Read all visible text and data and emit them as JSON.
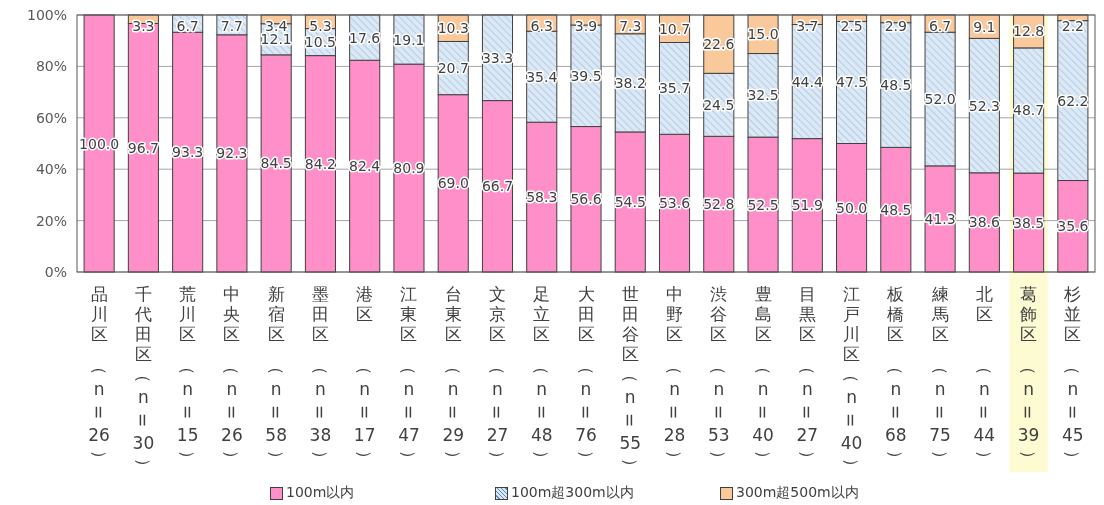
{
  "chart_data": {
    "type": "bar",
    "stacked": true,
    "grid": "y",
    "legend": "bottom",
    "categories": [
      "品川区（n=26）",
      "千代田区（n=30）",
      "荒川区（n=15）",
      "中央区（n=26）",
      "新宿区（n=58）",
      "墨田区（n=38）",
      "港区（n=17）",
      "江東区（n=47）",
      "台東区（n=29）",
      "文京区（n=27）",
      "足立区（n=48）",
      "大田区（n=76）",
      "世田谷区（n=55）",
      "中野区（n=28）",
      "渋谷区（n=53）",
      "豊島区（n=40）",
      "目黒区（n=27）",
      "江戸川区（n=40）",
      "板橋区（n=68）",
      "練馬区（n=75）",
      "北区（n=44）",
      "葛飾区（n=39）",
      "杉並区（n=45）"
    ],
    "ylim": [
      0,
      100
    ],
    "yticks": [
      {
        "value": 0,
        "label": "0%"
      },
      {
        "value": 20,
        "label": "20%"
      },
      {
        "value": 40,
        "label": "40%"
      },
      {
        "value": 60,
        "label": "60%"
      },
      {
        "value": 80,
        "label": "80%"
      },
      {
        "value": 100,
        "label": "100%"
      }
    ],
    "bands": [
      {
        "axis": "x",
        "from": "葛飾区（n=39）",
        "to": "葛飾区（n=39）",
        "color": "#fdfbd2"
      }
    ],
    "series": [
      {
        "name": "100m以内",
        "color": "#ff8fc8",
        "values": [
          100.0,
          96.7,
          93.3,
          92.3,
          84.5,
          84.2,
          82.4,
          80.9,
          69.0,
          66.7,
          58.3,
          56.6,
          54.5,
          53.6,
          52.8,
          52.5,
          51.9,
          50.0,
          48.5,
          41.3,
          38.6,
          38.5,
          35.6
        ],
        "value_labels": [
          "100.0",
          "96.7",
          "93.3",
          "92.3",
          "84.5",
          "84.2",
          "82.4",
          "80.9",
          "69.0",
          "66.7",
          "58.3",
          "56.6",
          "54.5",
          "53.6",
          "52.8",
          "52.5",
          "51.9",
          "50.0",
          "48.5",
          "41.3",
          "38.6",
          "38.5",
          "35.6"
        ]
      },
      {
        "name": "100m超300m以内",
        "color": "#dbe8f5",
        "values": [
          null,
          null,
          6.7,
          7.7,
          12.1,
          10.5,
          17.6,
          19.1,
          20.7,
          33.3,
          35.4,
          39.5,
          38.2,
          35.7,
          24.5,
          32.5,
          44.4,
          47.5,
          48.5,
          52.0,
          52.3,
          48.7,
          62.2
        ],
        "value_labels": [
          null,
          null,
          "6.7",
          "7.7",
          "12.1",
          "10.5",
          "17.6",
          "19.1",
          "20.7",
          "33.3",
          "35.4",
          "39.5",
          "38.2",
          "35.7",
          "24.5",
          "32.5",
          "44.4",
          "47.5",
          "48.5",
          "52.0",
          "52.3",
          "48.7",
          "62.2"
        ]
      },
      {
        "name": "300m超500m以内",
        "color": "#f9c89b",
        "values": [
          null,
          3.3,
          null,
          null,
          3.4,
          5.3,
          null,
          null,
          10.3,
          null,
          6.3,
          3.9,
          7.3,
          10.7,
          22.6,
          15.0,
          3.7,
          2.5,
          2.9,
          6.7,
          9.1,
          12.8,
          2.2
        ],
        "value_labels": [
          null,
          "3.3",
          null,
          null,
          "3.4",
          "5.3",
          null,
          null,
          "10.3",
          null,
          "6.3",
          "3.9",
          "7.3",
          "10.7",
          "22.6",
          "15.0",
          "3.7",
          "2.5",
          "2.9",
          "6.7",
          "9.1",
          "12.8",
          "2.2"
        ]
      }
    ]
  }
}
